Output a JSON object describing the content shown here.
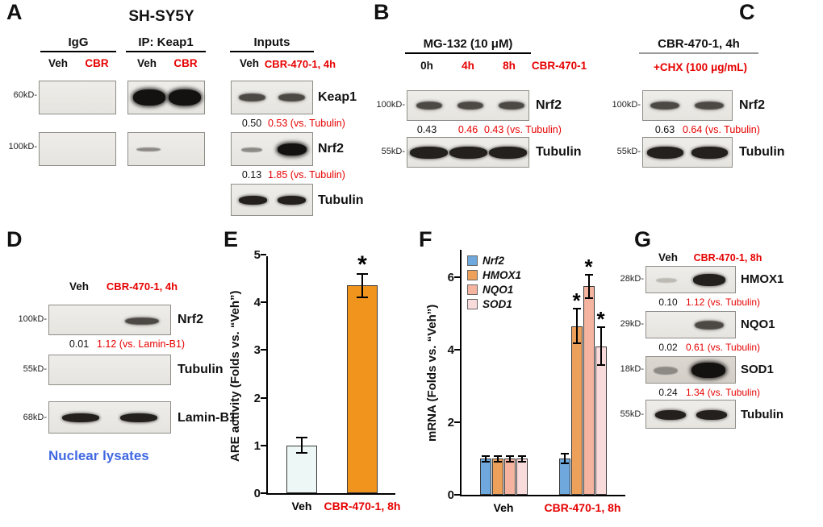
{
  "colors": {
    "red_accent": "#e60000",
    "blue_text": "#4169e1",
    "orange_bar": "#f0941e"
  },
  "panels": {
    "a": {
      "label": "A",
      "title": "SH-SY5Y",
      "groups": {
        "igg": {
          "title": "IgG",
          "lanes": [
            "Veh",
            "CBR"
          ]
        },
        "ip": {
          "title": "IP: Keap1",
          "lanes": [
            "Veh",
            "CBR"
          ]
        },
        "inputs": {
          "title": "Inputs",
          "lanes": [
            "Veh",
            "CBR-470-1, 4h"
          ]
        }
      },
      "markers": {
        "m60": "60kD-",
        "m100": "100kD-"
      },
      "rows": {
        "keap1": {
          "label": "Keap1",
          "veh_val": "0.50",
          "cbr_val": "0.53 (vs. Tubulin)"
        },
        "nrf2": {
          "label": "Nrf2",
          "veh_val": "0.13",
          "cbr_val": "1.85 (vs. Tubulin)"
        },
        "tubulin": {
          "label": "Tubulin"
        }
      }
    },
    "b": {
      "label": "B",
      "title": "MG-132 (10 μM)",
      "lanes": [
        "0h",
        "4h",
        "8h"
      ],
      "treatment": "CBR-470-1",
      "markers": {
        "m100": "100kD-",
        "m55": "55kD-"
      },
      "rows": {
        "nrf2": {
          "label": "Nrf2",
          "vals": [
            "0.43",
            "0.46",
            "0.43 (vs. Tubulin)"
          ]
        },
        "tubulin": {
          "label": "Tubulin"
        }
      }
    },
    "c": {
      "label": "C",
      "title": "CBR-470-1, 4h",
      "subtitle": "+CHX (100 μg/mL)",
      "markers": {
        "m100": "100kD-",
        "m55": "55kD-"
      },
      "rows": {
        "nrf2": {
          "label": "Nrf2",
          "veh_val": "0.63",
          "cbr_val": "0.64 (vs. Tubulin)"
        },
        "tubulin": {
          "label": "Tubulin"
        }
      }
    },
    "d": {
      "label": "D",
      "lanes": [
        "Veh",
        "CBR-470-1, 4h"
      ],
      "markers": {
        "m100": "100kD-",
        "m55": "55kD-",
        "m68": "68kD-"
      },
      "rows": {
        "nrf2": {
          "label": "Nrf2",
          "veh_val": "0.01",
          "cbr_val": "1.12 (vs. Lamin-B1)"
        },
        "tubulin": {
          "label": "Tubulin"
        },
        "laminb1": {
          "label": "Lamin-B1"
        }
      },
      "footnote": "Nuclear lysates"
    },
    "e": {
      "label": "E"
    },
    "f": {
      "label": "F"
    },
    "g": {
      "label": "G",
      "lanes": [
        "Veh",
        "CBR-470-1, 8h"
      ],
      "rows": [
        {
          "marker": "28kD-",
          "label": "HMOX1",
          "veh_val": "0.10",
          "cbr_val": "1.12 (vs. Tubulin)"
        },
        {
          "marker": "29kD-",
          "label": "NQO1",
          "veh_val": "0.02",
          "cbr_val": "0.61 (vs. Tubulin)"
        },
        {
          "marker": "18kD-",
          "label": "SOD1",
          "veh_val": "0.24",
          "cbr_val": "1.34 (vs. Tubulin)"
        },
        {
          "marker": "55kD-",
          "label": "Tubulin"
        }
      ]
    }
  },
  "chart_data": [
    {
      "id": "E",
      "type": "bar",
      "categories": [
        "Veh",
        "CBR-470-1, 8h"
      ],
      "category_colors": [
        "#000000",
        "#e60000"
      ],
      "values": [
        1.0,
        4.35
      ],
      "errors": [
        0.18,
        0.27
      ],
      "significance": [
        false,
        true
      ],
      "bar_colors": [
        "#edf7f5",
        "#f0941e"
      ],
      "ylabel": "ARE activity (Folds vs. “Veh”)",
      "ylim": [
        0,
        5
      ],
      "yticks": [
        0,
        1,
        2,
        3,
        4,
        5
      ],
      "grid": false,
      "legend": false
    },
    {
      "id": "F",
      "type": "bar",
      "categories": [
        "Veh",
        "CBR-470-1, 8h"
      ],
      "category_colors": [
        "#000000",
        "#e60000"
      ],
      "series": [
        {
          "name": "Nrf2",
          "color": "#6fa8dc",
          "values": [
            1.0,
            1.0
          ],
          "errors": [
            0.1,
            0.15
          ],
          "significance": [
            false,
            false
          ]
        },
        {
          "name": "HMOX1",
          "color": "#eda05a",
          "values": [
            1.0,
            4.65
          ],
          "errors": [
            0.1,
            0.5
          ],
          "significance": [
            false,
            true
          ]
        },
        {
          "name": "NQO1",
          "color": "#f5b49f",
          "values": [
            1.0,
            5.75
          ],
          "errors": [
            0.1,
            0.35
          ],
          "significance": [
            false,
            true
          ]
        },
        {
          "name": "SOD1",
          "color": "#fadbdb",
          "values": [
            1.0,
            4.1
          ],
          "errors": [
            0.1,
            0.55
          ],
          "significance": [
            false,
            true
          ]
        }
      ],
      "ylabel": "mRNA (Folds vs. “Veh”)",
      "ylim": [
        0,
        6.8
      ],
      "yticks": [
        0,
        2,
        4,
        6
      ],
      "grid": false,
      "legend": true,
      "legend_position": "top-left"
    }
  ]
}
